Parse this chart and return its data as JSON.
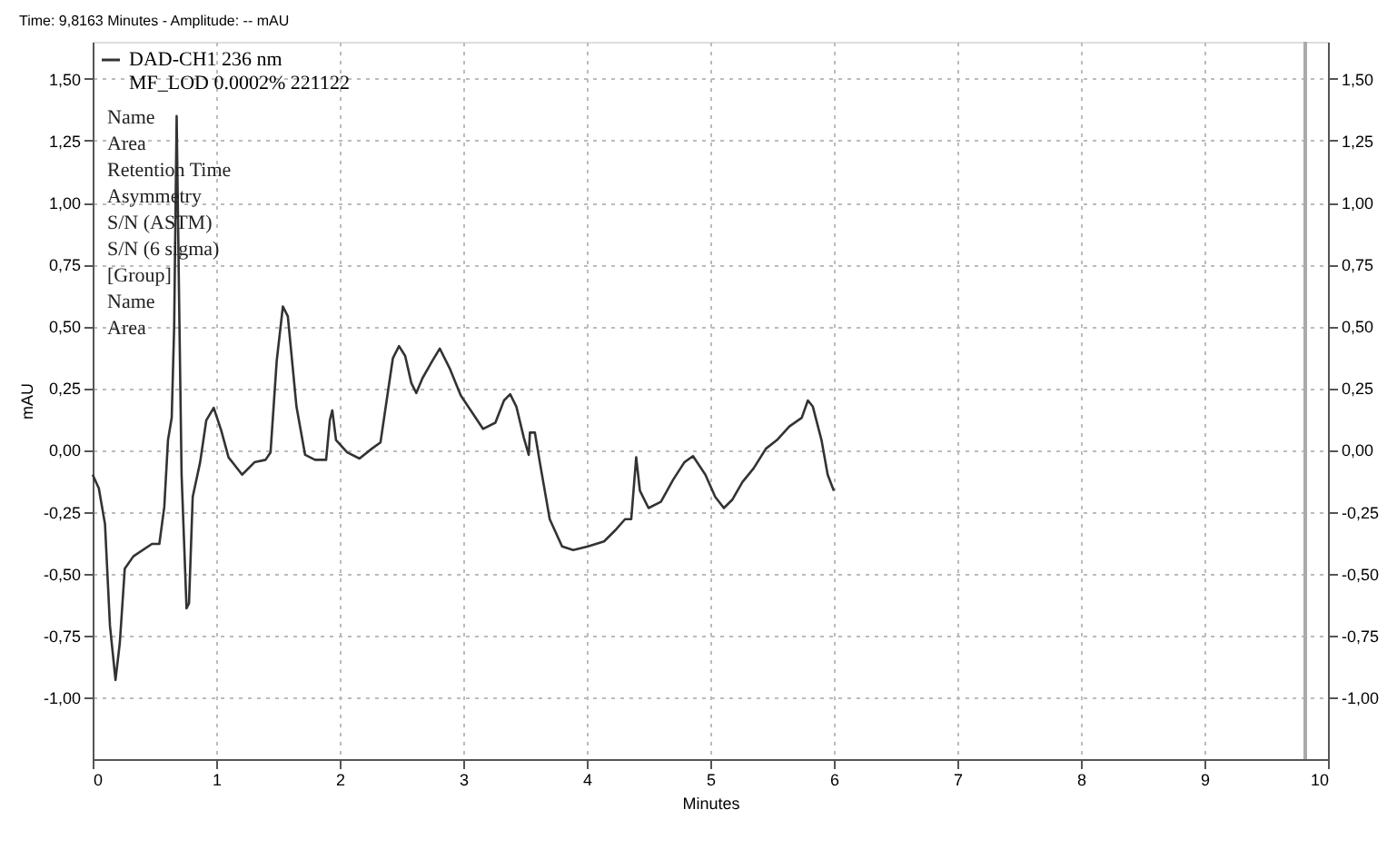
{
  "chart_data": {
    "type": "line",
    "title": "Time: 9,8163 Minutes - Amplitude: -- mAU",
    "xlabel": "Minutes",
    "ylabel": "mAU",
    "x": [
      0,
      0.05,
      0.1,
      0.14,
      0.185,
      0.22,
      0.26,
      0.33,
      0.48,
      0.54,
      0.58,
      0.61,
      0.64,
      0.66,
      0.68,
      0.7,
      0.72,
      0.76,
      0.78,
      0.81,
      0.87,
      0.92,
      0.98,
      1.04,
      1.1,
      1.21,
      1.31,
      1.4,
      1.44,
      1.49,
      1.54,
      1.58,
      1.65,
      1.72,
      1.8,
      1.89,
      1.92,
      1.94,
      1.97,
      2.06,
      2.16,
      2.26,
      2.33,
      2.38,
      2.43,
      2.48,
      2.53,
      2.58,
      2.62,
      2.67,
      2.75,
      2.81,
      2.89,
      2.98,
      3.04,
      3.16,
      3.26,
      3.33,
      3.38,
      3.43,
      3.49,
      3.53,
      3.54,
      3.58,
      3.62,
      3.7,
      3.8,
      3.89,
      4.01,
      4.14,
      4.23,
      4.31,
      4.36,
      4.4,
      4.43,
      4.5,
      4.6,
      4.7,
      4.79,
      4.86,
      4.96,
      5.04,
      5.11,
      5.18,
      5.26,
      5.35,
      5.45,
      5.54,
      5.64,
      5.74,
      5.79,
      5.83,
      5.9,
      5.95,
      6.0
    ],
    "series": [
      {
        "name": "DAD-CH1  236 nm\nMF_LOD 0.0002% 221122",
        "color": "#333333",
        "values": [
          -0.1,
          -0.155,
          -0.3,
          -0.71,
          -0.93,
          -0.78,
          -0.48,
          -0.43,
          -0.38,
          -0.38,
          -0.23,
          0.04,
          0.13,
          0.5,
          1.35,
          0.6,
          -0.1,
          -0.64,
          -0.62,
          -0.19,
          -0.05,
          0.12,
          0.17,
          0.08,
          -0.03,
          -0.1,
          -0.05,
          -0.04,
          -0.01,
          0.36,
          0.58,
          0.54,
          0.175,
          -0.02,
          -0.04,
          -0.04,
          0.12,
          0.16,
          0.04,
          -0.01,
          -0.035,
          0.005,
          0.03,
          0.2,
          0.37,
          0.42,
          0.38,
          0.27,
          0.23,
          0.29,
          0.36,
          0.41,
          0.33,
          0.22,
          0.175,
          0.085,
          0.11,
          0.2,
          0.225,
          0.175,
          0.05,
          -0.02,
          0.07,
          0.07,
          -0.05,
          -0.28,
          -0.39,
          -0.405,
          -0.39,
          -0.37,
          -0.325,
          -0.28,
          -0.28,
          -0.03,
          -0.165,
          -0.235,
          -0.21,
          -0.12,
          -0.05,
          -0.025,
          -0.1,
          -0.19,
          -0.235,
          -0.2,
          -0.13,
          -0.075,
          0.005,
          0.04,
          0.095,
          0.13,
          0.2,
          0.175,
          0.04,
          -0.1,
          -0.165
        ]
      }
    ],
    "xlim": [
      0,
      10
    ],
    "xticks": [
      0,
      1,
      2,
      3,
      4,
      5,
      6,
      7,
      8,
      9,
      10
    ],
    "ylim": [
      -1.25,
      1.65
    ],
    "yticks": [
      {
        "value": 1.5,
        "label": "1,50"
      },
      {
        "value": 1.25,
        "label": "1,25"
      },
      {
        "value": 1.0,
        "label": "1,00"
      },
      {
        "value": 0.75,
        "label": "0,75"
      },
      {
        "value": 0.5,
        "label": "0,50"
      },
      {
        "value": 0.25,
        "label": "0,25"
      },
      {
        "value": 0,
        "label": "0,00"
      },
      {
        "value": -0.25,
        "label": "-0,25"
      },
      {
        "value": -0.5,
        "label": "-0,50"
      },
      {
        "value": -0.75,
        "label": "-0,75"
      },
      {
        "value": -1.0,
        "label": "-1,00"
      }
    ],
    "y2lim": [
      -1.25,
      1.65
    ],
    "y2ticks": [
      {
        "value": 1.5,
        "label": "1,50"
      },
      {
        "value": 1.25,
        "label": "1,25"
      },
      {
        "value": 1.0,
        "label": "1,00"
      },
      {
        "value": 0.75,
        "label": "0,75"
      },
      {
        "value": 0.5,
        "label": "0,50"
      },
      {
        "value": 0.25,
        "label": "0,25"
      },
      {
        "value": 0,
        "label": "0,00"
      },
      {
        "value": -0.25,
        "label": "-0,25"
      },
      {
        "value": -0.5,
        "label": "-0,50"
      },
      {
        "value": -0.75,
        "label": "-0,75"
      },
      {
        "value": -1.0,
        "label": "-1,00"
      }
    ],
    "ref_lines": [
      {
        "axis": "x",
        "value": 9.8163,
        "color": "#aaaaaa"
      }
    ],
    "annotations": [
      "Name",
      "Area",
      "Retention Time",
      "Asymmetry",
      "S/N (ASTM)",
      "S/N (6 sigma)",
      "[Group]",
      "Name",
      "Area"
    ],
    "grid": true,
    "legend": "top left",
    "marker": "none",
    "line_style": "solid"
  }
}
